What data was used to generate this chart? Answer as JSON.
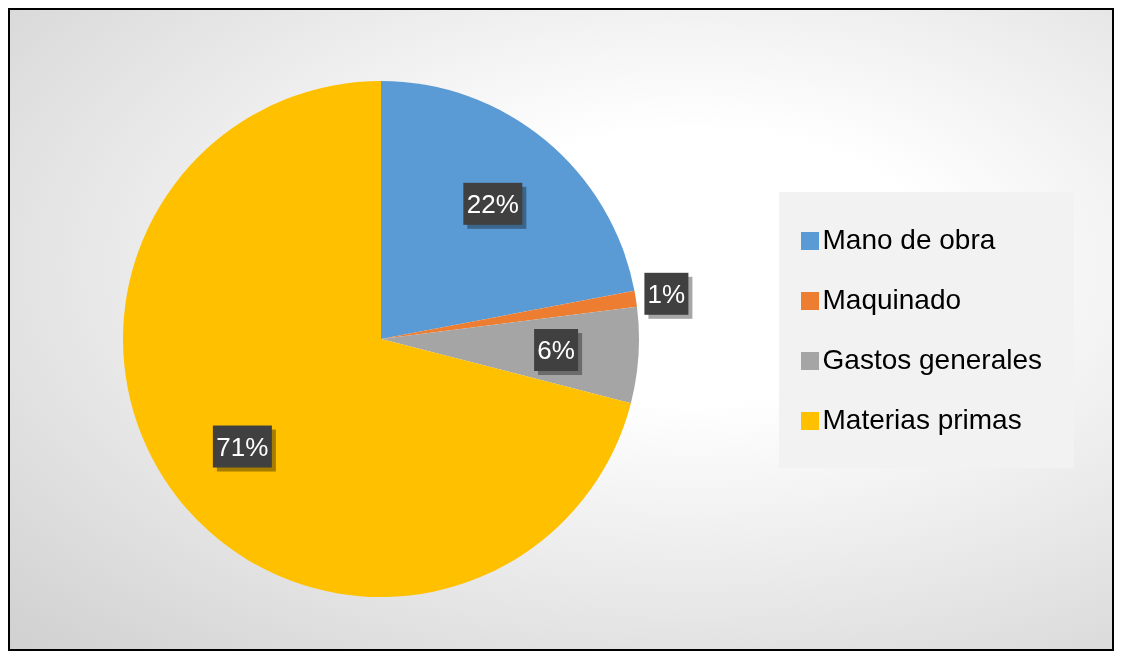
{
  "chart_data": {
    "type": "pie",
    "categories": [
      "Mano de obra",
      "Maquinado",
      "Gastos generales",
      "Materias primas"
    ],
    "values": [
      22,
      1,
      6,
      71
    ],
    "colors": [
      "#5b9bd5",
      "#ed7d31",
      "#a5a5a5",
      "#ffc000"
    ],
    "value_labels": [
      "22%",
      "1%",
      "6%",
      "71%"
    ],
    "legend": "right"
  }
}
